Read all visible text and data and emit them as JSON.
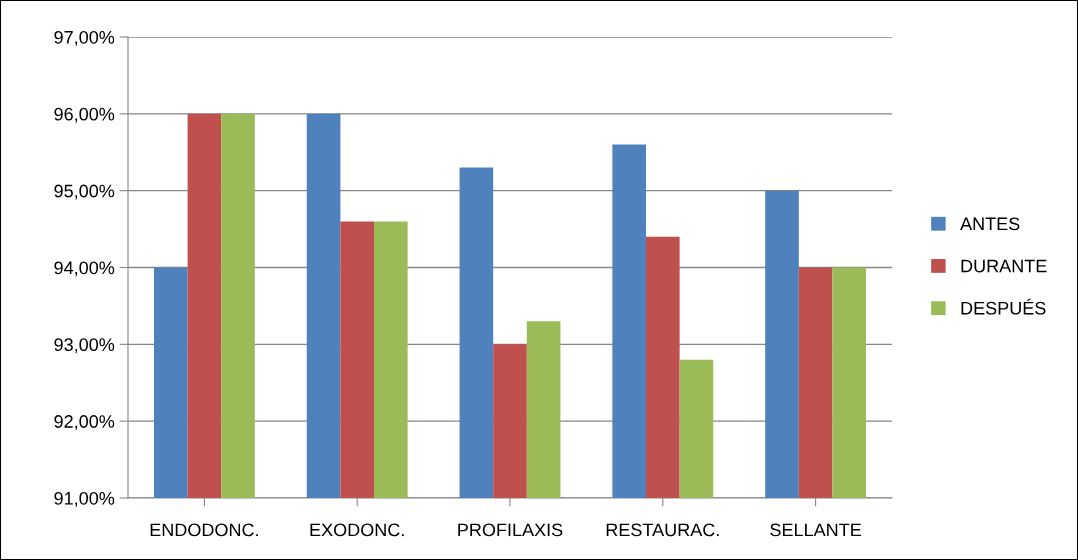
{
  "chart_data": {
    "type": "bar",
    "categories": [
      "ENDODONC.",
      "EXODONC.",
      "PROFILAXIS",
      "RESTAURAC.",
      "SELLANTE"
    ],
    "series": [
      {
        "name": "ANTES",
        "color": "#4f81bd",
        "values": [
          94.0,
          96.0,
          95.3,
          95.6,
          95.0
        ]
      },
      {
        "name": "DURANTE",
        "color": "#c0504d",
        "values": [
          96.0,
          94.6,
          93.0,
          94.4,
          94.0
        ]
      },
      {
        "name": "DESPUÉS",
        "color": "#9bbb59",
        "values": [
          96.0,
          94.6,
          93.3,
          92.8,
          94.0
        ]
      }
    ],
    "ylim": [
      91,
      97
    ],
    "yticks": [
      {
        "value": 91,
        "label": "91,00%"
      },
      {
        "value": 92,
        "label": "92,00%"
      },
      {
        "value": 93,
        "label": "93,00%"
      },
      {
        "value": 94,
        "label": "94,00%"
      },
      {
        "value": 95,
        "label": "95,00%"
      },
      {
        "value": 96,
        "label": "96,00%"
      },
      {
        "value": 97,
        "label": "97,00%"
      }
    ],
    "grid": "y",
    "legend": "right"
  }
}
